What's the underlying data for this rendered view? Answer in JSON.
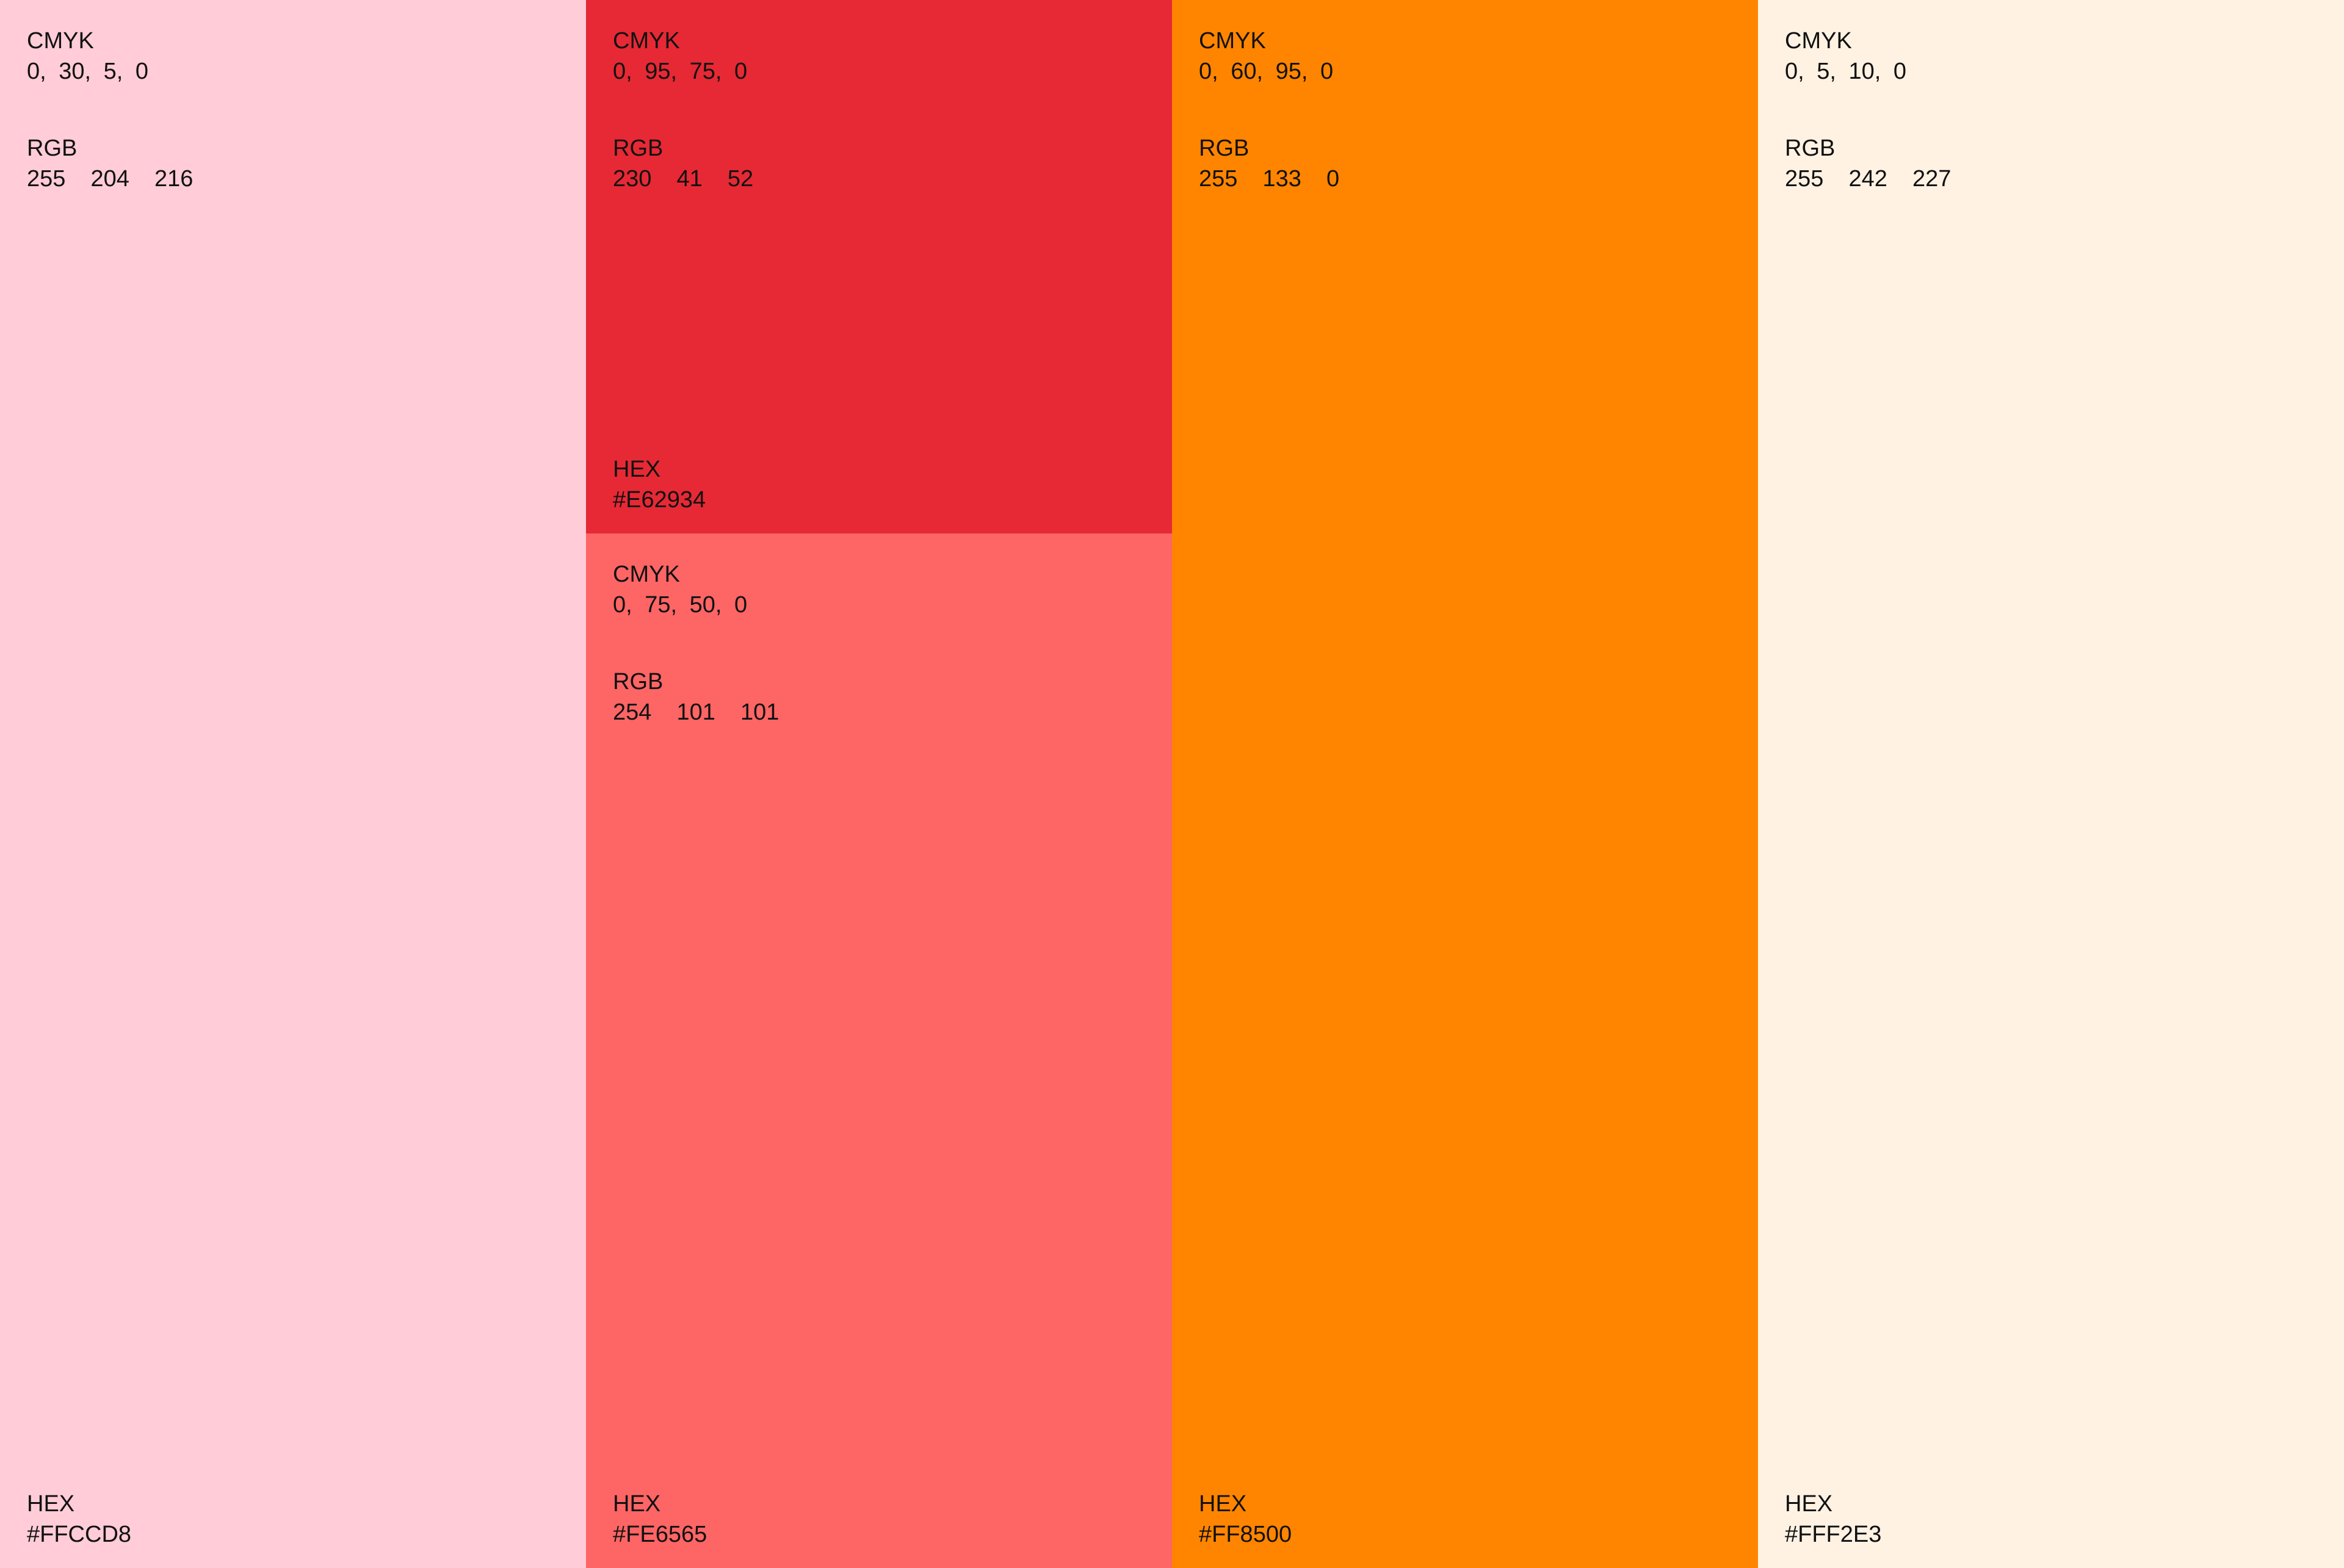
{
  "swatches": [
    {
      "id": "pink",
      "color": "#FFCCD8",
      "cmyk_label": "CMYK",
      "cmyk": "0, 30, 5, 0",
      "rgb_label": "RGB",
      "rgb": "255  204  216",
      "hex_label": "HEX",
      "hex": "#FFCCD8"
    },
    {
      "id": "red",
      "color": "#E62934",
      "cmyk_label": "CMYK",
      "cmyk": "0, 95, 75, 0",
      "rgb_label": "RGB",
      "rgb": "230  41  52",
      "hex_label": "HEX",
      "hex": "#E62934"
    },
    {
      "id": "coral",
      "color": "#FE6565",
      "cmyk_label": "CMYK",
      "cmyk": "0, 75, 50, 0",
      "rgb_label": "RGB",
      "rgb": "254  101  101",
      "hex_label": "HEX",
      "hex": "#FE6565"
    },
    {
      "id": "orange",
      "color": "#FF8500",
      "cmyk_label": "CMYK",
      "cmyk": "0, 60, 95, 0",
      "rgb_label": "RGB",
      "rgb": "255  133  0",
      "hex_label": "HEX",
      "hex": "#FF8500"
    },
    {
      "id": "cream",
      "color": "#FFF2E3",
      "cmyk_label": "CMYK",
      "cmyk": "0, 5, 10, 0",
      "rgb_label": "RGB",
      "rgb": "255  242  227",
      "hex_label": "HEX",
      "hex": "#FFF2E3"
    }
  ]
}
